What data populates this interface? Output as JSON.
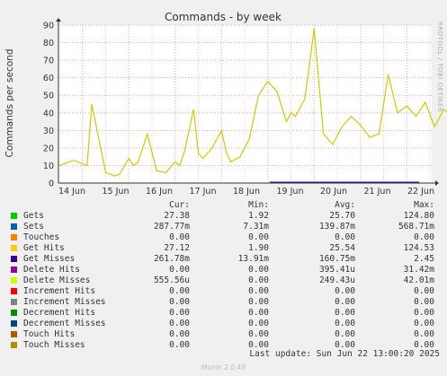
{
  "chart_data": {
    "type": "line",
    "title": "Commands - by week",
    "ylabel": "Commands per second",
    "ylim": [
      0,
      90
    ],
    "yticks": [
      0,
      10,
      20,
      30,
      40,
      50,
      60,
      70,
      80,
      90
    ],
    "xticks": [
      "14 Jun",
      "15 Jun",
      "16 Jun",
      "17 Jun",
      "18 Jun",
      "19 Jun",
      "20 Jun",
      "21 Jun",
      "22 Jun"
    ],
    "grid": true,
    "series": [
      {
        "name": "Gets",
        "color": "#00cc00",
        "x_days": [
          0,
          0.3,
          0.5,
          0.6,
          0.7,
          1.0,
          1.1,
          1.2,
          1.3,
          1.5,
          1.6,
          1.7,
          1.9,
          2.1,
          2.3,
          2.5,
          2.6,
          2.7,
          2.9,
          3.0,
          3.1,
          3.3,
          3.5,
          3.6,
          3.7,
          3.9,
          4.1,
          4.3,
          4.5,
          4.7,
          4.9,
          5.0,
          5.1,
          5.3,
          5.5,
          5.7,
          5.9,
          6.1,
          6.3,
          6.5,
          6.7,
          6.9,
          7.1,
          7.3,
          7.5,
          7.7,
          7.9,
          8.1,
          8.3,
          8.5,
          8.7,
          8.9,
          9.2
        ],
        "values": [
          10,
          13,
          11,
          10,
          45,
          6,
          5,
          4,
          5,
          14,
          10,
          12,
          28,
          7,
          6,
          12,
          10,
          18,
          42,
          17,
          14,
          20,
          30,
          18,
          12,
          15,
          25,
          50,
          58,
          52,
          35,
          40,
          38,
          48,
          88,
          28,
          22,
          32,
          38,
          33,
          26,
          28,
          62,
          40,
          44,
          38,
          46,
          32,
          42,
          38,
          58,
          35,
          32
        ]
      },
      {
        "name": "Sets",
        "color": "#0066b3",
        "values": []
      },
      {
        "name": "Touches",
        "color": "#ff8000",
        "values": []
      },
      {
        "name": "Get Hits",
        "color": "#ffcc00",
        "values": []
      },
      {
        "name": "Get Misses",
        "color": "#330099",
        "values": []
      },
      {
        "name": "Delete Hits",
        "color": "#990099",
        "values": []
      },
      {
        "name": "Delete Misses",
        "color": "#ccff00",
        "values": []
      },
      {
        "name": "Increment Hits",
        "color": "#ff0000",
        "values": []
      },
      {
        "name": "Increment Misses",
        "color": "#808080",
        "values": []
      },
      {
        "name": "Decrement Hits",
        "color": "#008f00",
        "values": []
      },
      {
        "name": "Decrement Misses",
        "color": "#00487d",
        "values": []
      },
      {
        "name": "Touch Hits",
        "color": "#b35a00",
        "values": []
      },
      {
        "name": "Touch Misses",
        "color": "#b38f00",
        "values": []
      }
    ]
  },
  "side_label": "RRDTOOL / TOBI OETIKER",
  "legend": {
    "headers": {
      "cur": "Cur:",
      "min": "Min:",
      "avg": "Avg:",
      "max": "Max:"
    },
    "rows": [
      {
        "name": "Gets",
        "color": "#00cc00",
        "cur": "27.38",
        "min": "1.92",
        "avg": "25.70",
        "max": "124.80"
      },
      {
        "name": "Sets",
        "color": "#0066b3",
        "cur": "287.77m",
        "min": "7.31m",
        "avg": "139.87m",
        "max": "568.71m"
      },
      {
        "name": "Touches",
        "color": "#ff8000",
        "cur": "0.00",
        "min": "0.00",
        "avg": "0.00",
        "max": "0.00"
      },
      {
        "name": "Get Hits",
        "color": "#ffcc00",
        "cur": "27.12",
        "min": "1.90",
        "avg": "25.54",
        "max": "124.53"
      },
      {
        "name": "Get Misses",
        "color": "#330099",
        "cur": "261.78m",
        "min": "13.91m",
        "avg": "160.75m",
        "max": "2.45"
      },
      {
        "name": "Delete Hits",
        "color": "#990099",
        "cur": "0.00",
        "min": "0.00",
        "avg": "395.41u",
        "max": "31.42m"
      },
      {
        "name": "Delete Misses",
        "color": "#ccff00",
        "cur": "555.56u",
        "min": "0.00",
        "avg": "249.43u",
        "max": "42.01m"
      },
      {
        "name": "Increment Hits",
        "color": "#ff0000",
        "cur": "0.00",
        "min": "0.00",
        "avg": "0.00",
        "max": "0.00"
      },
      {
        "name": "Increment Misses",
        "color": "#808080",
        "cur": "0.00",
        "min": "0.00",
        "avg": "0.00",
        "max": "0.00"
      },
      {
        "name": "Decrement Hits",
        "color": "#008f00",
        "cur": "0.00",
        "min": "0.00",
        "avg": "0.00",
        "max": "0.00"
      },
      {
        "name": "Decrement Misses",
        "color": "#00487d",
        "cur": "0.00",
        "min": "0.00",
        "avg": "0.00",
        "max": "0.00"
      },
      {
        "name": "Touch Hits",
        "color": "#b35a00",
        "cur": "0.00",
        "min": "0.00",
        "avg": "0.00",
        "max": "0.00"
      },
      {
        "name": "Touch Misses",
        "color": "#b38f00",
        "cur": "0.00",
        "min": "0.00",
        "avg": "0.00",
        "max": "0.00"
      }
    ]
  },
  "last_update": "Last update: Sun Jun 22 13:00:20 2025",
  "footer": "Munin 2.0.49"
}
